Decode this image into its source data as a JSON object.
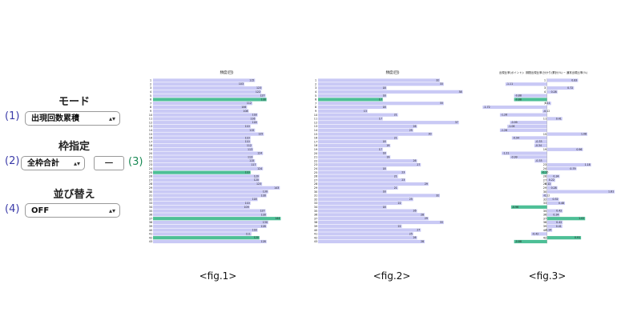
{
  "controls": {
    "mode": {
      "title": "モード",
      "number": "(1)",
      "value": "出現回数累積"
    },
    "frame": {
      "title": "枠指定",
      "number": "(2)",
      "value": "全枠合計",
      "dash": "ー",
      "number_right": "(3)"
    },
    "sort": {
      "title": "並び替え",
      "number": "(4)",
      "value": "OFF"
    }
  },
  "figures": {
    "fig1_label": "<fig.1>",
    "fig2_label": "<fig.2>",
    "fig3_label": "<fig.3>"
  },
  "colors": {
    "bar": "#c9c9f5",
    "highlight": "#4dbf96",
    "text": "#222222"
  },
  "chart_data": [
    {
      "type": "bar",
      "orientation": "horizontal",
      "title": "頻度(回)",
      "categories": [
        "1",
        "2",
        "3",
        "4",
        "5",
        "6",
        "7",
        "8",
        "9",
        "10",
        "11",
        "12",
        "13",
        "14",
        "15",
        "16",
        "17",
        "18",
        "19",
        "20",
        "21",
        "22",
        "23",
        "24",
        "25",
        "26",
        "27",
        "28",
        "29",
        "30",
        "31",
        "32",
        "33",
        "34",
        "35",
        "36",
        "37",
        "38",
        "39",
        "40",
        "41",
        "42",
        "43"
      ],
      "values": [
        115,
        103,
        123,
        122,
        127,
        128,
        112,
        106,
        108,
        118,
        116,
        118,
        110,
        115,
        125,
        110,
        110,
        112,
        113,
        124,
        113,
        115,
        117,
        124,
        110,
        120,
        120,
        123,
        143,
        130,
        128,
        118,
        110,
        109,
        127,
        128,
        144,
        130,
        128,
        118,
        111,
        120,
        128
      ],
      "highlight_indices": [
        5,
        24,
        36,
        41
      ],
      "xlim": [
        0,
        150
      ]
    },
    {
      "type": "bar",
      "orientation": "horizontal",
      "title": "頻度(回)",
      "categories": [
        "1",
        "2",
        "3",
        "4",
        "5",
        "6",
        "7",
        "8",
        "9",
        "10",
        "11",
        "12",
        "13",
        "14",
        "15",
        "16",
        "17",
        "18",
        "19",
        "20",
        "21",
        "22",
        "23",
        "24",
        "25",
        "26",
        "27",
        "28",
        "29",
        "30",
        "31",
        "32",
        "33",
        "34",
        "35",
        "36",
        "37",
        "38",
        "39",
        "40",
        "41",
        "42",
        "43"
      ],
      "values": [
        32,
        33,
        18,
        38,
        18,
        17,
        33,
        18,
        13,
        21,
        17,
        37,
        26,
        25,
        30,
        21,
        18,
        19,
        17,
        18,
        19,
        26,
        27,
        18,
        23,
        21,
        23,
        29,
        21,
        18,
        32,
        25,
        22,
        18,
        26,
        28,
        29,
        33,
        22,
        27,
        25,
        26,
        28
      ],
      "highlight_indices": [
        5
      ],
      "xlim": [
        0,
        40
      ]
    },
    {
      "type": "bar",
      "orientation": "horizontal",
      "title": "出現比率(ポイント)：期間出現比率(分かり)累計(%) − 通常出現比率(%)",
      "categories": [
        "1",
        "2",
        "3",
        "4",
        "5",
        "6",
        "7",
        "8",
        "9",
        "10",
        "11",
        "12",
        "13",
        "14",
        "15",
        "16",
        "17",
        "18",
        "19",
        "20",
        "21",
        "22",
        "23",
        "24",
        "25",
        "26",
        "27",
        "28",
        "29",
        "30",
        "31",
        "32",
        "33",
        "34",
        "35",
        "36",
        "37",
        "38",
        "39",
        "40",
        "41",
        "42",
        "43"
      ],
      "values": [
        0.83,
        -1.11,
        0.72,
        0.28,
        -0.88,
        -0.88,
        0.11,
        -1.72,
        -0.12,
        -1.26,
        0.41,
        -0.99,
        -1.06,
        -1.26,
        1.08,
        -0.94,
        -0.33,
        -0.34,
        0.96,
        -1.21,
        -0.99,
        -0.33,
        1.18,
        0.79,
        -0.16,
        0.34,
        0.22,
        0.12,
        0.28,
        1.81,
        -0.12,
        0.32,
        0.48,
        -0.96,
        0.42,
        0.34,
        1.02,
        0.42,
        0.41,
        0.14,
        -0.42,
        0.91,
        -0.88
      ],
      "highlight_indices": [
        5,
        24,
        33,
        36,
        41,
        42
      ],
      "xlim": [
        -2.2,
        2.0
      ]
    }
  ]
}
